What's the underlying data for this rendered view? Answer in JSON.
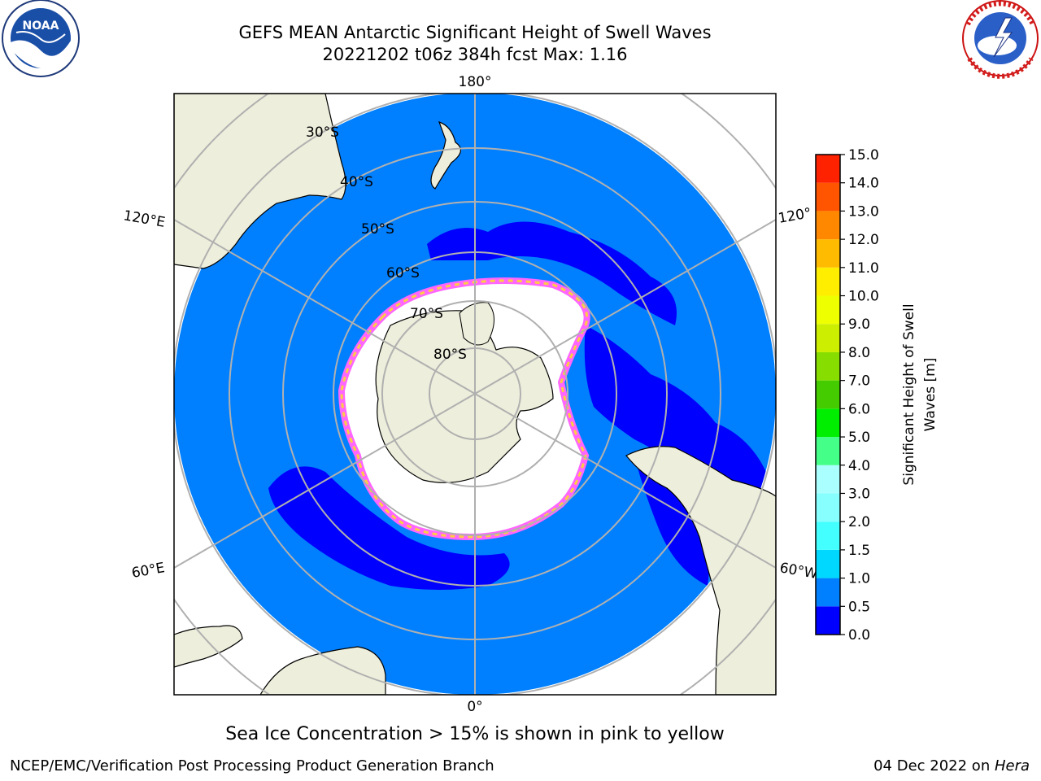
{
  "title": {
    "line1": "GEFS MEAN Antarctic Significant Height of Swell Waves",
    "line2": "20221202 t06z 384h fcst   Max: 1.16"
  },
  "logos": {
    "left": {
      "icon": "noaa-logo",
      "text": "NOAA"
    },
    "right": {
      "icon": "nws-logo",
      "text": "NATIONAL WEATHER SERVICE"
    }
  },
  "map": {
    "projection": "south-polar-stereographic",
    "longitude_labels": {
      "top": "180°",
      "bottom": "0°",
      "upper_left": "120°E",
      "lower_left": "60°E",
      "upper_right": "120°",
      "lower_right": "60°W"
    },
    "latitude_labels": [
      "30°S",
      "40°S",
      "50°S",
      "60°S",
      "70°S",
      "80°S"
    ],
    "colors": {
      "land": "#eeeedc",
      "ocean_low": "#0080ff",
      "ocean_very_low": "#0000ff",
      "sea_ice": "#ffffff",
      "ice_edge_pink": "#ff66ff",
      "ice_edge_yellow": "#ffcc44",
      "grid": "#b0b0b0"
    }
  },
  "colorbar": {
    "label_line1": "Significant Height of Swell",
    "label_line2": "Waves [m]",
    "ticks": [
      "0.0",
      "0.5",
      "1.0",
      "1.5",
      "2.0",
      "3.0",
      "4.0",
      "5.0",
      "6.0",
      "7.0",
      "8.0",
      "9.0",
      "10.0",
      "11.0",
      "12.0",
      "13.0",
      "14.0",
      "15.0"
    ],
    "colors": [
      "#0000ff",
      "#0080ff",
      "#00d8ff",
      "#44ffff",
      "#88ffff",
      "#aaffff",
      "#44ff88",
      "#00ee00",
      "#44cc00",
      "#88dd00",
      "#ccee00",
      "#eeff00",
      "#ffee00",
      "#ffbb00",
      "#ff8800",
      "#ff5500",
      "#ff2200",
      "#ff0000"
    ]
  },
  "caption": "Sea Ice Concentration > 15% is shown in pink to yellow",
  "footer": {
    "left": "NCEP/EMC/Verification Post Processing Product Generation Branch",
    "right_date": "04 Dec 2022 on ",
    "right_host": "Hera"
  }
}
